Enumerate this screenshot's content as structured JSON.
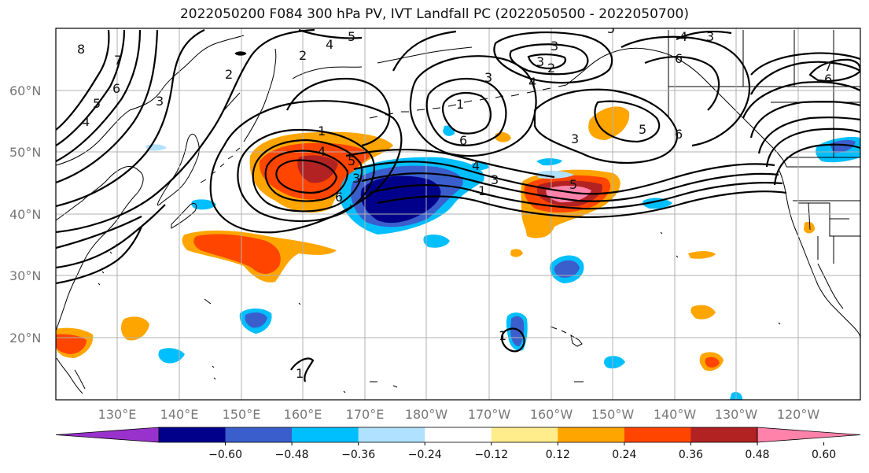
{
  "title": "2022050200 F084 300 hPa PV, IVT Landfall PC (2022050500 - 2022050700)",
  "lat_labels": [
    "60°N",
    "50°N",
    "40°N",
    "30°N",
    "20°N"
  ],
  "lon_labels": [
    "130°E",
    "140°E",
    "150°E",
    "160°E",
    "170°E",
    "180°W",
    "170°W",
    "160°W",
    "150°W",
    "140°W",
    "130°W",
    "120°W"
  ],
  "colorbar": {
    "ticks": [
      "−0.60",
      "−0.48",
      "−0.36",
      "−0.24",
      "−0.12",
      "0.12",
      "0.24",
      "0.36",
      "0.48",
      "0.60"
    ],
    "colors": [
      "#9932cc",
      "#00008b",
      "#3a5fcd",
      "#00bfff",
      "#b0e2ff",
      "#ffffff",
      "#ffec8b",
      "#ffa500",
      "#ff4500",
      "#b22222",
      "#ff82ab"
    ]
  },
  "pv_contour_labels": [
    "8",
    "7",
    "6",
    "5",
    "4",
    "3",
    "2",
    "1",
    "4",
    "5",
    "4",
    "3",
    "2",
    "1",
    "5",
    "6",
    "3",
    "2",
    "5",
    "4",
    "3",
    "1",
    "6",
    "3",
    "4",
    "3",
    "2",
    "1",
    "3",
    "5",
    "6",
    "5",
    "6",
    "7",
    "6",
    "4",
    "3",
    "5",
    "1",
    "1",
    "1"
  ],
  "colors": {
    "grid": "#b0b0b0",
    "contour": "#000000",
    "coast": "#000000"
  }
}
